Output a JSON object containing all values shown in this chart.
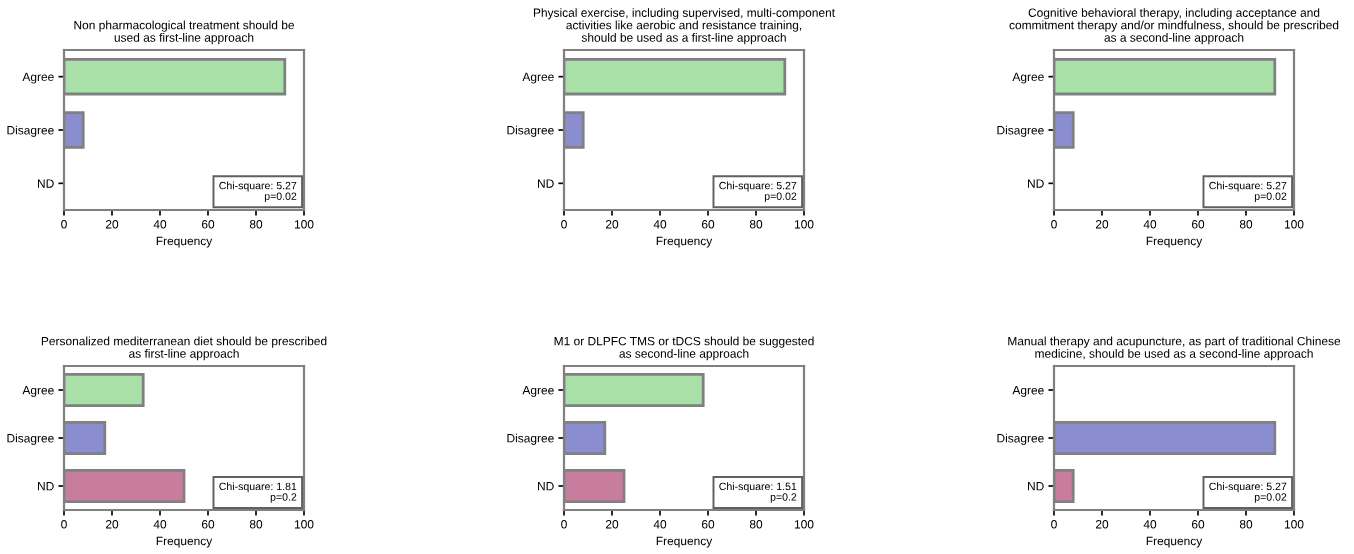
{
  "chart_data": [
    {
      "type": "bar",
      "orientation": "horizontal",
      "title": "Non pharmacological treatment should be\nused as first-line approach",
      "xlabel": "Frequency",
      "categories": [
        "Agree",
        "Disagree",
        "ND"
      ],
      "values": [
        92,
        8,
        0
      ],
      "colors": [
        "#a8e0a8",
        "#8a8ed0",
        "#c87c9e"
      ],
      "xlim": [
        0,
        100
      ],
      "xticks": [
        0,
        20,
        40,
        60,
        80,
        100
      ],
      "grid": false,
      "annotations": [
        "Chi-square: 5.27\np=0.02"
      ]
    },
    {
      "type": "bar",
      "orientation": "horizontal",
      "title": "Physical exercise, including supervised, multi-component\nactivities like aerobic and resistance training,\nshould be used as a first-line approach",
      "xlabel": "Frequency",
      "categories": [
        "Agree",
        "Disagree",
        "ND"
      ],
      "values": [
        92,
        8,
        0
      ],
      "colors": [
        "#a8e0a8",
        "#8a8ed0",
        "#c87c9e"
      ],
      "xlim": [
        0,
        100
      ],
      "xticks": [
        0,
        20,
        40,
        60,
        80,
        100
      ],
      "grid": false,
      "annotations": [
        "Chi-square: 5.27\np=0.02"
      ]
    },
    {
      "type": "bar",
      "orientation": "horizontal",
      "title": "Cognitive behavioral therapy, including acceptance and\ncommitment therapy and/or mindfulness, should be prescribed\nas a second-line approach",
      "xlabel": "Frequency",
      "categories": [
        "Agree",
        "Disagree",
        "ND"
      ],
      "values": [
        92,
        8,
        0
      ],
      "colors": [
        "#a8e0a8",
        "#8a8ed0",
        "#c87c9e"
      ],
      "xlim": [
        0,
        100
      ],
      "xticks": [
        0,
        20,
        40,
        60,
        80,
        100
      ],
      "grid": false,
      "annotations": [
        "Chi-square: 5.27\np=0.02"
      ]
    },
    {
      "type": "bar",
      "orientation": "horizontal",
      "title": "Personalized mediterranean diet should be prescribed\nas first-line approach",
      "xlabel": "Frequency",
      "categories": [
        "Agree",
        "Disagree",
        "ND"
      ],
      "values": [
        33,
        17,
        50
      ],
      "colors": [
        "#a8e0a8",
        "#8a8ed0",
        "#c87c9e"
      ],
      "xlim": [
        0,
        100
      ],
      "xticks": [
        0,
        20,
        40,
        60,
        80,
        100
      ],
      "grid": false,
      "annotations": [
        "Chi-square: 1.81\np=0.2"
      ]
    },
    {
      "type": "bar",
      "orientation": "horizontal",
      "title": "M1 or DLPFC TMS or tDCS should be suggested\nas second-line approach",
      "xlabel": "Frequency",
      "categories": [
        "Agree",
        "Disagree",
        "ND"
      ],
      "values": [
        58,
        17,
        25
      ],
      "colors": [
        "#a8e0a8",
        "#8a8ed0",
        "#c87c9e"
      ],
      "xlim": [
        0,
        100
      ],
      "xticks": [
        0,
        20,
        40,
        60,
        80,
        100
      ],
      "grid": false,
      "annotations": [
        "Chi-square: 1.51\np=0.2"
      ]
    },
    {
      "type": "bar",
      "orientation": "horizontal",
      "title": "Manual therapy and acupuncture, as part of traditional Chinese\nmedicine, should be used as a second-line approach",
      "xlabel": "Frequency",
      "categories": [
        "Agree",
        "Disagree",
        "ND"
      ],
      "values": [
        0,
        92,
        8
      ],
      "colors": [
        "#a8e0a8",
        "#8a8ed0",
        "#c87c9e"
      ],
      "xlim": [
        0,
        100
      ],
      "xticks": [
        0,
        20,
        40,
        60,
        80,
        100
      ],
      "grid": false,
      "annotations": [
        "Chi-square: 5.27\np=0.02"
      ]
    }
  ]
}
